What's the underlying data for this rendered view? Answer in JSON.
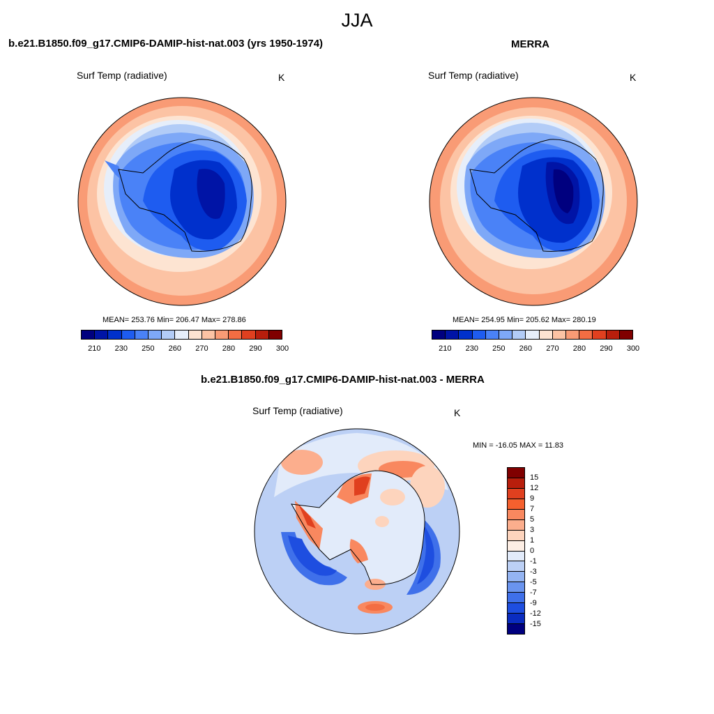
{
  "title": "JJA",
  "panels": {
    "model": {
      "title": "b.e21.B1850.f09_g17.CMIP6-DAMIP-hist-nat.003 (yrs 1950-1974)",
      "variable": "Surf Temp (radiative)",
      "units": "K",
      "stats": "MEAN= 253.76  Min= 206.47  Max= 278.86"
    },
    "obs": {
      "title": "MERRA",
      "variable": "Surf Temp (radiative)",
      "units": "K",
      "stats": "MEAN= 254.95  Min= 205.62  Max= 280.19"
    },
    "diff": {
      "title": "b.e21.B1850.f09_g17.CMIP6-DAMIP-hist-nat.003 - MERRA",
      "variable": "Surf Temp (radiative)",
      "units": "K",
      "stats": "MIN = -16.05 MAX =  11.83"
    }
  },
  "colorbars": {
    "abs": {
      "ticks": [
        "210",
        "230",
        "250",
        "260",
        "270",
        "280",
        "290",
        "300"
      ],
      "colors": [
        "#00007f",
        "#0014a6",
        "#0030cc",
        "#1e5cf0",
        "#4a82f7",
        "#7ea8f7",
        "#b2ccf7",
        "#e6eefa",
        "#fde4d2",
        "#fcc3a4",
        "#f99b75",
        "#f36d43",
        "#e0401f",
        "#b81e0c",
        "#800000"
      ]
    },
    "diff": {
      "ticks": [
        "15",
        "12",
        "9",
        "7",
        "5",
        "3",
        "1",
        "0",
        "-1",
        "-3",
        "-5",
        "-7",
        "-9",
        "-12",
        "-15"
      ],
      "colors": [
        "#800000",
        "#b81e0c",
        "#e0401f",
        "#f5602e",
        "#f9885f",
        "#fcae8d",
        "#fdd4bd",
        "#fdeee4",
        "#e2ebfa",
        "#bcd0f5",
        "#94b4f2",
        "#6a94ef",
        "#3f70ea",
        "#1e4ee0",
        "#0a2cc0",
        "#00007f"
      ]
    }
  }
}
